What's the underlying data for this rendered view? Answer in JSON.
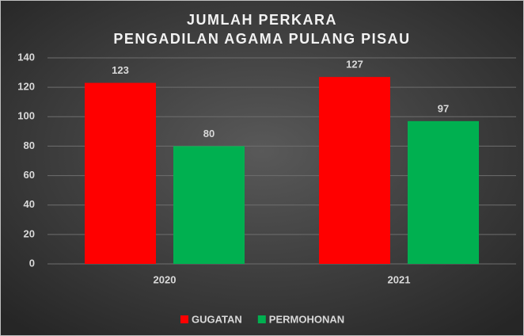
{
  "chart_data": {
    "type": "bar",
    "title": [
      "JUMLAH PERKARA",
      "PENGADILAN AGAMA PULANG PISAU"
    ],
    "categories": [
      "2020",
      "2021"
    ],
    "series": [
      {
        "name": "GUGATAN",
        "color": "#ff0000",
        "values": [
          123,
          127
        ]
      },
      {
        "name": "PERMOHONAN",
        "color": "#00b050",
        "values": [
          80,
          97
        ]
      }
    ],
    "ylim": [
      0,
      140
    ],
    "yticks": [
      0,
      20,
      40,
      60,
      80,
      100,
      120,
      140
    ],
    "grid": true,
    "legend": "bottom"
  }
}
